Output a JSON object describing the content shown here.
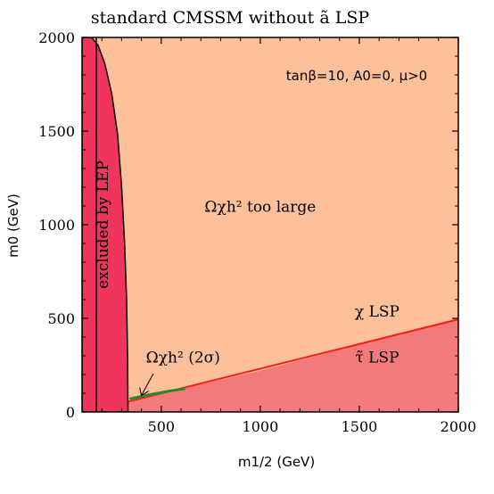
{
  "chart_data": {
    "type": "area",
    "title": "standard CMSSM without ã LSP",
    "xlabel": "m1/2 (GeV)",
    "ylabel": "m0 (GeV)",
    "xlim": [
      100,
      2000
    ],
    "ylim": [
      0,
      2000
    ],
    "xticks": [
      500,
      1000,
      1500,
      2000
    ],
    "yticks": [
      0,
      500,
      1000,
      1500,
      2000
    ],
    "parameters_label": "tanβ=10, A0=0, μ>0",
    "colors": {
      "allowed_background": "#fcc09a",
      "lep_excluded": "#f0345c",
      "stau_lsp": "#f27a7a",
      "boundary_line": "#ff1a1a",
      "relic_band": "#2a8a2a"
    },
    "regions": [
      {
        "name": "excluded by LEP",
        "boundary": [
          {
            "x": 148,
            "y": 2000
          },
          {
            "x": 180,
            "y": 1960
          },
          {
            "x": 215,
            "y": 1860
          },
          {
            "x": 250,
            "y": 1700
          },
          {
            "x": 280,
            "y": 1480
          },
          {
            "x": 300,
            "y": 1200
          },
          {
            "x": 315,
            "y": 900
          },
          {
            "x": 325,
            "y": 600
          },
          {
            "x": 330,
            "y": 300
          },
          {
            "x": 332,
            "y": 0
          }
        ],
        "inner_line_x": 172
      },
      {
        "name": "τ̃ LSP",
        "boundary": [
          {
            "x": 332,
            "y": 55
          },
          {
            "x": 500,
            "y": 98
          },
          {
            "x": 1000,
            "y": 220
          },
          {
            "x": 1500,
            "y": 360
          },
          {
            "x": 2000,
            "y": 495
          }
        ]
      },
      {
        "name": "Ωχh² (2σ)",
        "band": [
          {
            "x": 340,
            "y": 70
          },
          {
            "x": 420,
            "y": 88
          },
          {
            "x": 520,
            "y": 108
          },
          {
            "x": 620,
            "y": 125
          }
        ]
      }
    ],
    "annotations": [
      {
        "text": "Ωχh² too large",
        "x": 1000,
        "y": 1070
      },
      {
        "text": "χ LSP",
        "x": 1590,
        "y": 510
      },
      {
        "text": "τ̃ LSP",
        "x": 1590,
        "y": 265
      },
      {
        "text": "Ωχh² (2σ)",
        "x": 610,
        "y": 265
      },
      {
        "text": "excluded by LEP",
        "x": 230,
        "y": 1000,
        "rotation": -90
      }
    ]
  }
}
